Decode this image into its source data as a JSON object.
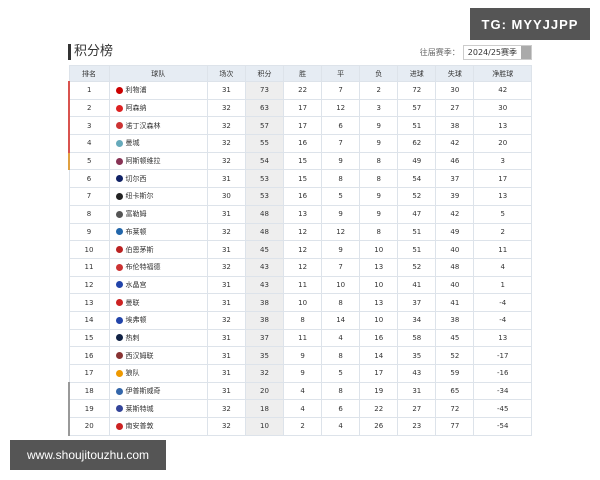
{
  "header": {
    "title": "积分榜",
    "season_label": "往届赛季：",
    "season": "2024/25赛季"
  },
  "table": {
    "columns": [
      "排名",
      "球队",
      "场次",
      "积分",
      "胜",
      "平",
      "负",
      "进球",
      "失球",
      "净胜球"
    ],
    "rows": [
      [
        1,
        "利物浦",
        31,
        73,
        22,
        7,
        2,
        72,
        30,
        42
      ],
      [
        2,
        "阿森纳",
        32,
        63,
        17,
        12,
        3,
        57,
        27,
        30
      ],
      [
        3,
        "诺丁汉森林",
        32,
        57,
        17,
        6,
        9,
        51,
        38,
        13
      ],
      [
        4,
        "曼城",
        32,
        55,
        16,
        7,
        9,
        62,
        42,
        20
      ],
      [
        5,
        "阿斯顿维拉",
        32,
        54,
        15,
        9,
        8,
        49,
        46,
        3
      ],
      [
        6,
        "切尔西",
        31,
        53,
        15,
        8,
        8,
        54,
        37,
        17
      ],
      [
        7,
        "纽卡斯尔",
        30,
        53,
        16,
        5,
        9,
        52,
        39,
        13
      ],
      [
        8,
        "富勒姆",
        31,
        48,
        13,
        9,
        9,
        47,
        42,
        5
      ],
      [
        9,
        "布莱顿",
        32,
        48,
        12,
        12,
        8,
        51,
        49,
        2
      ],
      [
        10,
        "伯恩茅斯",
        31,
        45,
        12,
        9,
        10,
        51,
        40,
        11
      ],
      [
        11,
        "布伦特福德",
        32,
        43,
        12,
        7,
        13,
        52,
        48,
        4
      ],
      [
        12,
        "水晶宫",
        31,
        43,
        11,
        10,
        10,
        41,
        40,
        1
      ],
      [
        13,
        "曼联",
        31,
        38,
        10,
        8,
        13,
        37,
        41,
        -4
      ],
      [
        14,
        "埃弗顿",
        32,
        38,
        8,
        14,
        10,
        34,
        38,
        -4
      ],
      [
        15,
        "热刺",
        31,
        37,
        11,
        4,
        16,
        58,
        45,
        13
      ],
      [
        16,
        "西汉姆联",
        31,
        35,
        9,
        8,
        14,
        35,
        52,
        -17
      ],
      [
        17,
        "狼队",
        31,
        32,
        9,
        5,
        17,
        43,
        59,
        -16
      ],
      [
        18,
        "伊普斯威奇",
        31,
        20,
        4,
        8,
        19,
        31,
        65,
        -34
      ],
      [
        19,
        "莱斯特城",
        32,
        18,
        4,
        6,
        22,
        27,
        72,
        -45
      ],
      [
        20,
        "南安普敦",
        32,
        10,
        2,
        4,
        26,
        23,
        77,
        -54
      ]
    ]
  },
  "watermark": "TG: MYYJJPP",
  "footer": "www.shoujitouzhu.com"
}
